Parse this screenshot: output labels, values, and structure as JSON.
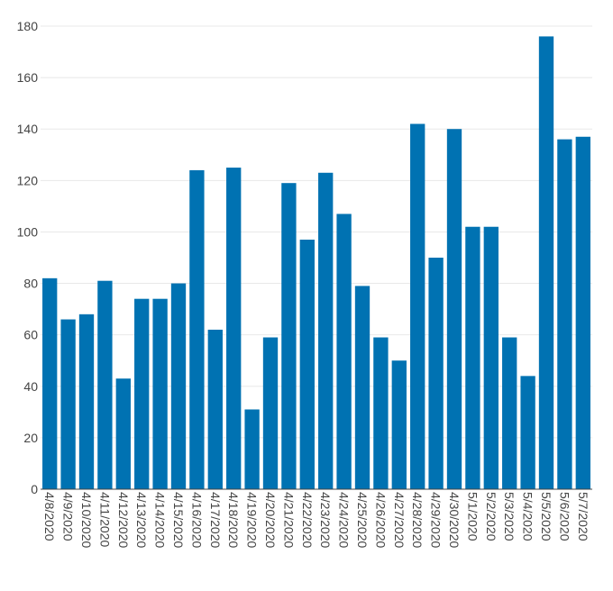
{
  "chart_data": {
    "type": "bar",
    "title": "",
    "xlabel": "",
    "ylabel": "",
    "categories": [
      "4/8/2020",
      "4/9/2020",
      "4/10/2020",
      "4/11/2020",
      "4/12/2020",
      "4/13/2020",
      "4/14/2020",
      "4/15/2020",
      "4/16/2020",
      "4/17/2020",
      "4/18/2020",
      "4/19/2020",
      "4/20/2020",
      "4/21/2020",
      "4/22/2020",
      "4/23/2020",
      "4/24/2020",
      "4/25/2020",
      "4/26/2020",
      "4/27/2020",
      "4/28/2020",
      "4/29/2020",
      "4/30/2020",
      "5/1/2020",
      "5/2/2020",
      "5/3/2020",
      "5/4/2020",
      "5/5/2020",
      "5/6/2020",
      "5/7/2020"
    ],
    "values": [
      82,
      66,
      68,
      81,
      43,
      74,
      74,
      80,
      124,
      62,
      125,
      31,
      59,
      119,
      97,
      123,
      107,
      79,
      59,
      50,
      142,
      90,
      140,
      102,
      102,
      59,
      44,
      176,
      136,
      137
    ],
    "ylim": [
      0,
      180
    ],
    "yticks": [
      "0",
      "20",
      "40",
      "60",
      "80",
      "100",
      "120",
      "140",
      "160",
      "180"
    ],
    "grid": true,
    "legend": "none",
    "bar_color": "#0072b2"
  }
}
